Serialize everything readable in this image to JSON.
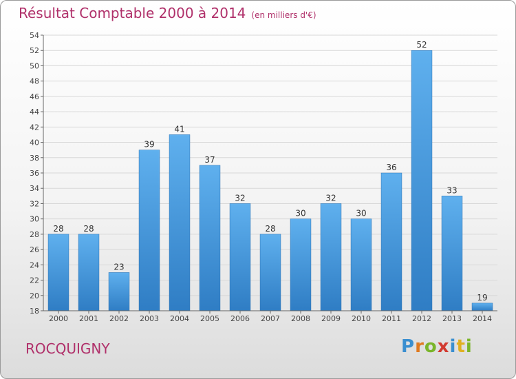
{
  "chart_data": {
    "type": "bar",
    "title": "Résultat Comptable 2000 à 2014",
    "subtitle": "(en milliers d'€)",
    "categories": [
      "2000",
      "2001",
      "2002",
      "2003",
      "2004",
      "2005",
      "2006",
      "2007",
      "2008",
      "2009",
      "2010",
      "2011",
      "2012",
      "2013",
      "2014"
    ],
    "values": [
      28,
      28,
      23,
      39,
      41,
      37,
      32,
      28,
      30,
      32,
      30,
      36,
      52,
      33,
      19
    ],
    "ylim": [
      18,
      54
    ],
    "yticks": [
      18,
      20,
      22,
      24,
      26,
      28,
      30,
      32,
      34,
      36,
      38,
      40,
      42,
      44,
      46,
      48,
      50,
      52,
      54
    ],
    "xlabel": "",
    "ylabel": "",
    "bar_color": "#3d8fd6",
    "title_color": "#b0306a"
  },
  "commune": "ROCQUIGNY",
  "logo": {
    "letters": [
      "P",
      "r",
      "o",
      "x",
      "i",
      "t",
      "i"
    ],
    "colors": [
      "#3a8fd0",
      "#e07a20",
      "#7ab52a",
      "#d23a30",
      "#3a8fd0",
      "#e0b020",
      "#7ab52a"
    ]
  }
}
